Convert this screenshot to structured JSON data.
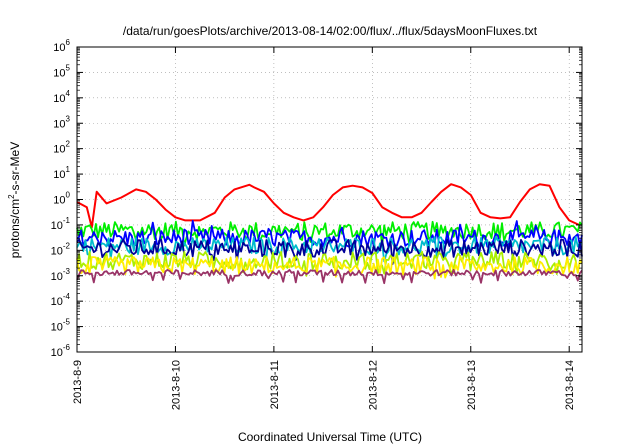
{
  "chart_data": {
    "type": "line",
    "title": "/data/run/goesPlots/archive/2013-08-14/02:00/flux/../flux/5daysMoonFluxes.txt",
    "xlabel": "Coordinated Universal Time (UTC)",
    "ylabel": "protons/cm²-s-sr-MeV",
    "ylabel_parts": {
      "base": "protons/cm",
      "sup": "2",
      "rest": "-s-sr-MeV"
    },
    "y_scale": "log",
    "ylim": [
      1e-06,
      1000000
    ],
    "y_tick_exponents": [
      -6,
      -5,
      -4,
      -3,
      -2,
      -1,
      0,
      1,
      2,
      3,
      4,
      5,
      6
    ],
    "y_tick_base": "10",
    "x_ticks": [
      "2013-8-9",
      "2013-8-10",
      "2013-8-11",
      "2013-8-12",
      "2013-8-13",
      "2013-8-14"
    ],
    "xlim": [
      0,
      5.13
    ],
    "grid": true,
    "legend": "none",
    "series": [
      {
        "color": "#ff0000",
        "x": [
          0,
          0.1,
          0.15,
          0.2,
          0.3,
          0.45,
          0.6,
          0.7,
          0.8,
          0.9,
          1.0,
          1.1,
          1.25,
          1.4,
          1.5,
          1.6,
          1.75,
          1.8,
          1.9,
          2.0,
          2.1,
          2.2,
          2.3,
          2.4,
          2.5,
          2.6,
          2.7,
          2.8,
          2.9,
          3.0,
          3.1,
          3.2,
          3.3,
          3.4,
          3.5,
          3.6,
          3.7,
          3.8,
          3.9,
          4.0,
          4.1,
          4.2,
          4.3,
          4.4,
          4.5,
          4.6,
          4.7,
          4.8,
          4.9,
          5.0,
          5.1
        ],
        "y": [
          0.8,
          0.5,
          0.08,
          2.0,
          0.7,
          1.2,
          2.5,
          2.0,
          1.0,
          0.4,
          0.2,
          0.15,
          0.15,
          0.3,
          1.2,
          2.5,
          3.8,
          3.0,
          2.0,
          0.7,
          0.3,
          0.2,
          0.15,
          0.2,
          0.5,
          1.5,
          3.0,
          3.5,
          3.0,
          1.8,
          0.5,
          0.3,
          0.2,
          0.2,
          0.3,
          0.8,
          2.0,
          4.0,
          3.0,
          1.5,
          0.3,
          0.2,
          0.18,
          0.2,
          0.8,
          2.5,
          4.0,
          3.5,
          0.5,
          0.15,
          0.1
        ]
      },
      {
        "color": "#00ee00",
        "base": 0.06,
        "x_end": 5.13
      },
      {
        "color": "#0000ff",
        "base": 0.03,
        "x_end": 5.13
      },
      {
        "color": "#00bbcc",
        "base": 0.015,
        "x_end": 5.13
      },
      {
        "color": "#000099",
        "base": 0.012,
        "x_end": 5.13
      },
      {
        "color": "#aaee00",
        "base": 0.004,
        "x_end": 5.13
      },
      {
        "color": "#ffee00",
        "base": 0.0025,
        "x_end": 5.13
      },
      {
        "color": "#993366",
        "base": 0.0013,
        "x_end": 5.13
      }
    ]
  }
}
